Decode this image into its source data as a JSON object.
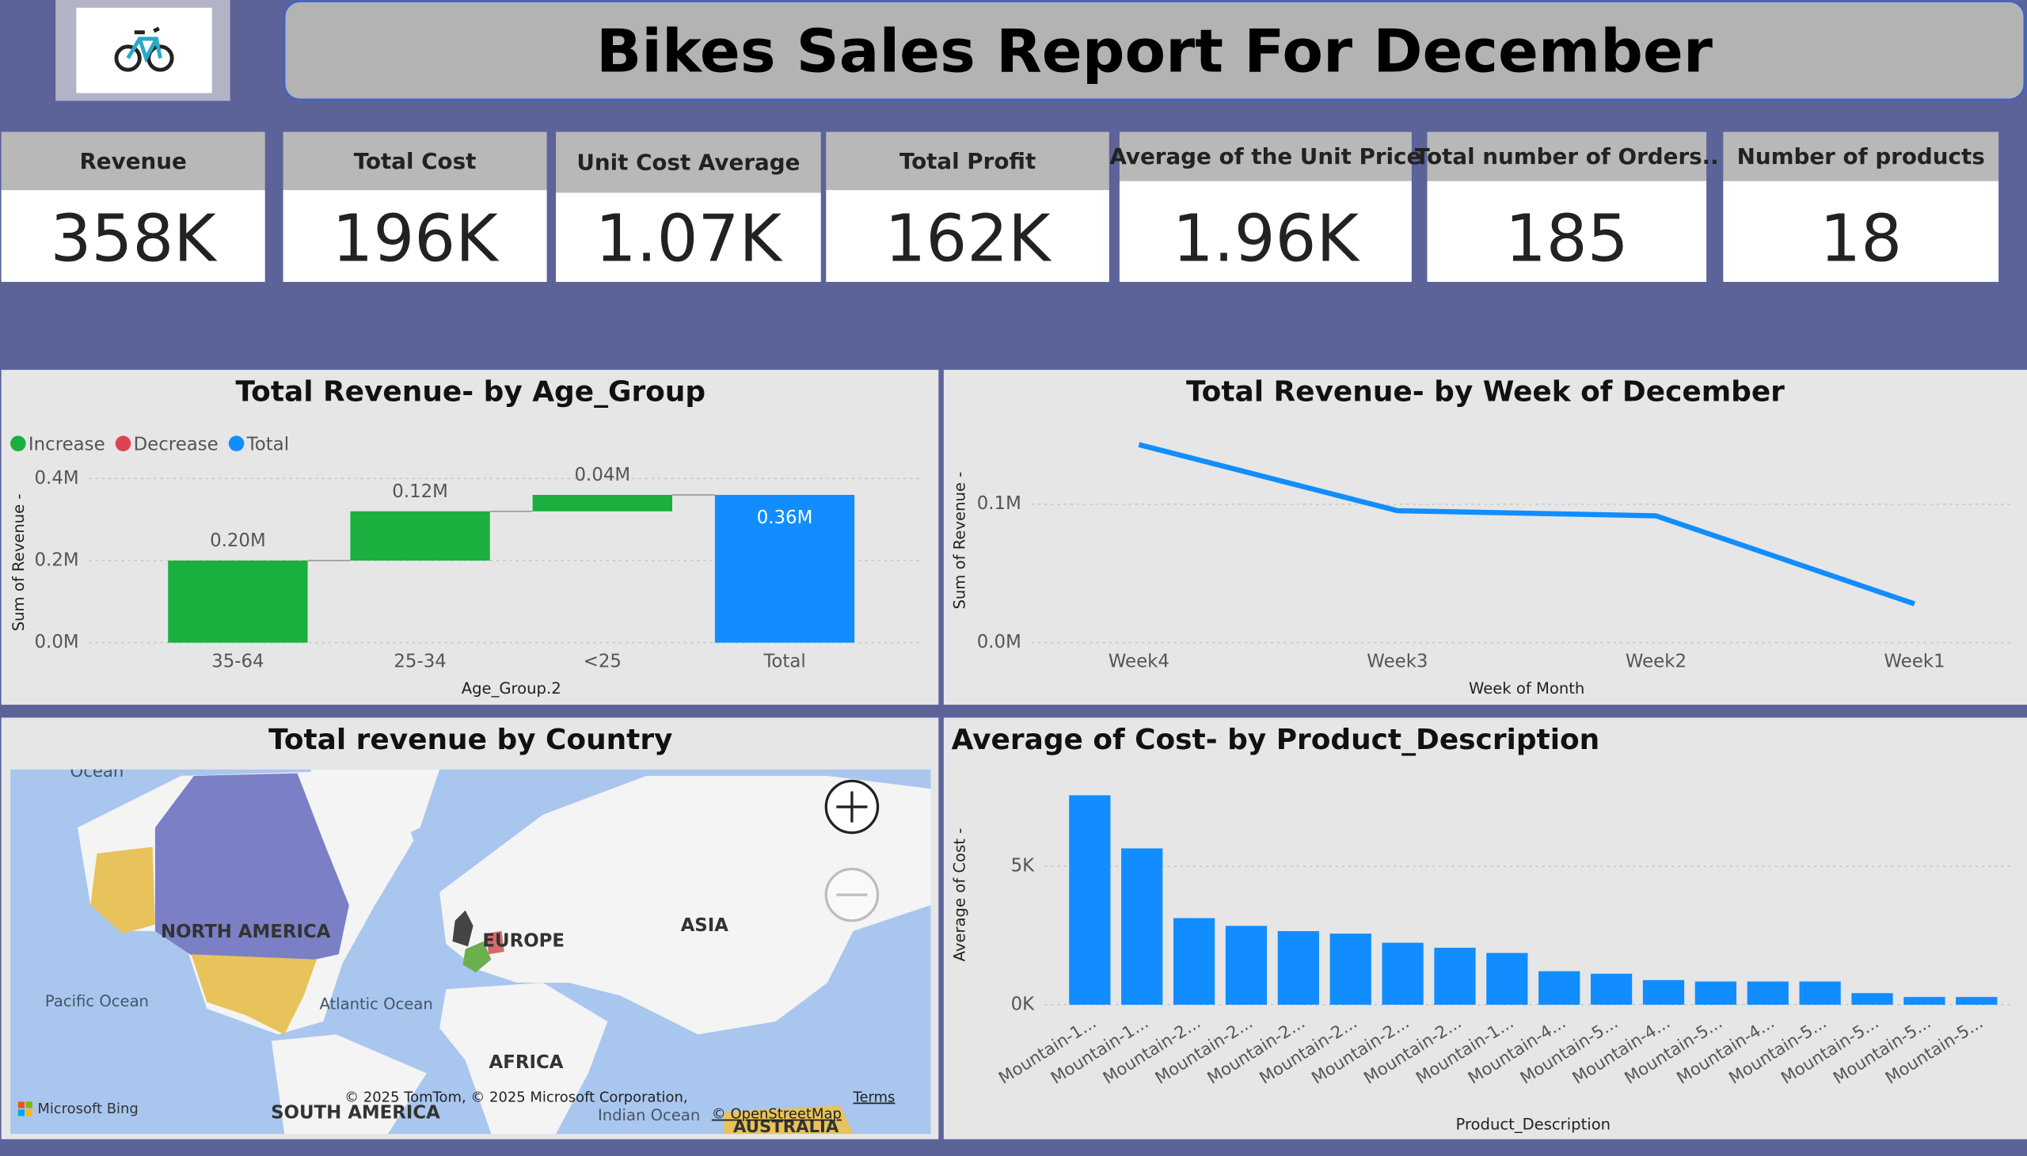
{
  "header": {
    "title": "Bikes Sales Report For December"
  },
  "kpis": [
    {
      "label": "Revenue",
      "value": "358K"
    },
    {
      "label": "Total Cost",
      "value": "196K"
    },
    {
      "label": "Unit Cost Average",
      "value": "1.07K"
    },
    {
      "label": "Total Profit",
      "value": "162K"
    },
    {
      "label": "Average of the Unit Price",
      "value": "1.96K"
    },
    {
      "label": "Total number of Orders..",
      "value": "185"
    },
    {
      "label": "Number of products",
      "value": "18"
    }
  ],
  "map": {
    "title": "Total revenue by Country",
    "labels": [
      "Ocean",
      "NORTH AMERICA",
      "EUROPE",
      "ASIA",
      "Pacific Ocean",
      "Atlantic Ocean",
      "AFRICA",
      "SOUTH AMERICA",
      "Indian Ocean",
      "AUSTRALIA"
    ],
    "attribution": "© 2025 TomTom, © 2025 Microsoft Corporation,",
    "terms": "Terms",
    "osm": "© OpenStreetMap",
    "bing": "Microsoft Bing"
  },
  "chart_data": [
    {
      "type": "waterfall",
      "title": "Total Revenue- by Age_Group",
      "xlabel": "Age_Group.2",
      "ylabel": "Sum of Revenue -",
      "legend": [
        {
          "name": "Increase",
          "color": "#1aaf3e"
        },
        {
          "name": "Decrease",
          "color": "#e0434f"
        },
        {
          "name": "Total",
          "color": "#118dff"
        }
      ],
      "categories": [
        "35-64",
        "25-34",
        "<25",
        "Total"
      ],
      "values": [
        0.2,
        0.12,
        0.04,
        0.36
      ],
      "value_labels": [
        "0.20M",
        "0.12M",
        "0.04M",
        "0.36M"
      ],
      "ylim": [
        0,
        0.43
      ],
      "yticks": [
        {
          "value": 0,
          "label": "0.0M"
        },
        {
          "value": 0.2,
          "label": "0.2M"
        },
        {
          "value": 0.4,
          "label": "0.4M"
        }
      ],
      "grid": true
    },
    {
      "type": "line",
      "title": "Total Revenue- by Week of December",
      "xlabel": "Week of Month",
      "ylabel": "Sum of Revenue -",
      "categories": [
        "Week4",
        "Week3",
        "Week2",
        "Week1"
      ],
      "values": [
        0.143,
        0.0953,
        0.0916,
        0.028
      ],
      "color": "#118dff",
      "ylim": [
        0,
        0.155
      ],
      "yticks": [
        {
          "value": 0,
          "label": "0.0M"
        },
        {
          "value": 0.1,
          "label": "0.1M"
        }
      ],
      "grid": true
    },
    {
      "type": "bar",
      "title": "Average of Cost- by Product_Description",
      "xlabel": "Product_Description",
      "ylabel": "Average of Cost -",
      "categories": [
        "Mountain-1...",
        "Mountain-1...",
        "Mountain-2...",
        "Mountain-2...",
        "Mountain-2...",
        "Mountain-2...",
        "Mountain-2...",
        "Mountain-2...",
        "Mountain-1...",
        "Mountain-4...",
        "Mountain-5...",
        "Mountain-4...",
        "Mountain-5...",
        "Mountain-4...",
        "Mountain-5...",
        "Mountain-5...",
        "Mountain-5...",
        "Mountain-5..."
      ],
      "values": [
        7570,
        5650,
        3130,
        2850,
        2660,
        2570,
        2240,
        2060,
        1870,
        1210,
        1120,
        890,
        840,
        840,
        840,
        420,
        280,
        280
      ],
      "color": "#118dff",
      "ylim": [
        0,
        8300
      ],
      "yticks": [
        {
          "value": 0,
          "label": "0K"
        },
        {
          "value": 5000,
          "label": "5K"
        }
      ],
      "grid": true
    }
  ]
}
